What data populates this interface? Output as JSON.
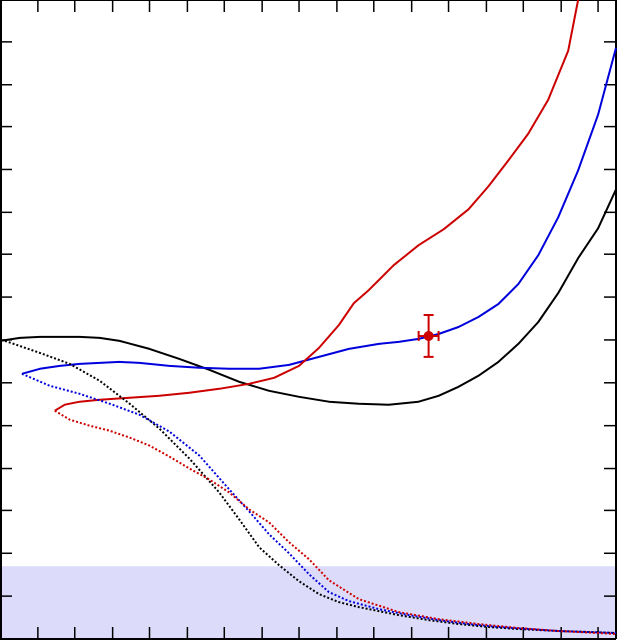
{
  "chart_data": {
    "type": "line",
    "title": "",
    "xlabel": "",
    "ylabel": "",
    "xlim": [
      0,
      618
    ],
    "ylim": [
      0,
      641
    ],
    "grid": false,
    "legend": "none",
    "shaded_band": {
      "y_from": 0,
      "y_to": 73,
      "color": "#dcdcfa"
    },
    "x_ticks": [
      0,
      38,
      75,
      113,
      150,
      188,
      225,
      263,
      300,
      338,
      375,
      413,
      450,
      488,
      525,
      563,
      600
    ],
    "y_ticks": [
      43,
      86,
      129,
      171,
      214,
      257,
      300,
      343,
      386,
      428,
      471,
      514,
      556,
      599
    ],
    "series": [
      {
        "color": "#000000",
        "style": "solid",
        "x": [
          0,
          20,
          40,
          60,
          80,
          100,
          120,
          150,
          180,
          210,
          240,
          270,
          300,
          330,
          360,
          390,
          420,
          440,
          460,
          480,
          500,
          520,
          540,
          560,
          580,
          600,
          618
        ],
        "y": [
          299,
          302,
          303,
          303,
          303,
          302,
          299,
          291,
          281,
          270,
          258,
          249,
          243,
          238,
          236,
          235,
          238,
          244,
          253,
          264,
          278,
          296,
          318,
          347,
          382,
          412,
          451
        ]
      },
      {
        "color": "#0000dd",
        "style": "solid",
        "x": [
          22,
          40,
          60,
          80,
          100,
          120,
          140,
          170,
          200,
          230,
          260,
          290,
          320,
          350,
          380,
          400,
          420,
          440,
          460,
          480,
          500,
          520,
          540,
          560,
          580,
          600,
          618
        ],
        "y": [
          266,
          271,
          274,
          276,
          277,
          278,
          277,
          274,
          272,
          271,
          271,
          275,
          283,
          291,
          296,
          298,
          301,
          306,
          313,
          323,
          336,
          356,
          385,
          423,
          470,
          526,
          593
        ]
      },
      {
        "color": "#cc0000",
        "style": "solid",
        "x": [
          55,
          65,
          80,
          100,
          130,
          160,
          190,
          220,
          250,
          275,
          300,
          320,
          340,
          355,
          370,
          395,
          420,
          445,
          470,
          490,
          510,
          530,
          550,
          570,
          580
        ],
        "y": [
          229,
          235,
          238,
          240,
          242,
          244,
          247,
          251,
          256,
          262,
          274,
          292,
          315,
          337,
          350,
          375,
          395,
          411,
          431,
          454,
          480,
          507,
          541,
          590,
          641
        ]
      },
      {
        "color": "#000000",
        "style": "dotted",
        "x": [
          5,
          40,
          70,
          100,
          130,
          160,
          190,
          220,
          240,
          260,
          280,
          300,
          320,
          340,
          360,
          380,
          400,
          430,
          460,
          490,
          520,
          560,
          590,
          618
        ],
        "y": [
          299,
          287,
          276,
          259,
          236,
          211,
          181,
          147,
          120,
          92,
          74,
          58,
          45,
          37,
          32,
          28,
          24,
          19,
          15,
          12,
          10,
          8,
          7,
          6
        ]
      },
      {
        "color": "#0000dd",
        "style": "dotted",
        "x": [
          22,
          50,
          80,
          110,
          140,
          170,
          200,
          230,
          250,
          270,
          290,
          310,
          330,
          350,
          380,
          410,
          440,
          470,
          500,
          530,
          560,
          590,
          618
        ],
        "y": [
          266,
          254,
          246,
          236,
          225,
          208,
          184,
          150,
          128,
          105,
          86,
          65,
          47,
          38,
          30,
          24,
          19,
          15,
          12,
          10,
          8,
          7,
          6
        ]
      },
      {
        "color": "#cc0000",
        "style": "dotted",
        "x": [
          55,
          70,
          90,
          110,
          130,
          150,
          170,
          190,
          210,
          230,
          250,
          270,
          290,
          310,
          330,
          360,
          400,
          440,
          480,
          520,
          560,
          600,
          618
        ],
        "y": [
          229,
          220,
          214,
          209,
          202,
          194,
          183,
          171,
          160,
          147,
          130,
          117,
          97,
          80,
          59,
          40,
          27,
          20,
          15,
          11,
          8,
          6,
          5
        ]
      }
    ],
    "errorbar_point": {
      "x": 430,
      "y": 304,
      "xerr": [
        10,
        10
      ],
      "yerr": [
        21,
        21
      ],
      "color": "#cc0000"
    }
  }
}
